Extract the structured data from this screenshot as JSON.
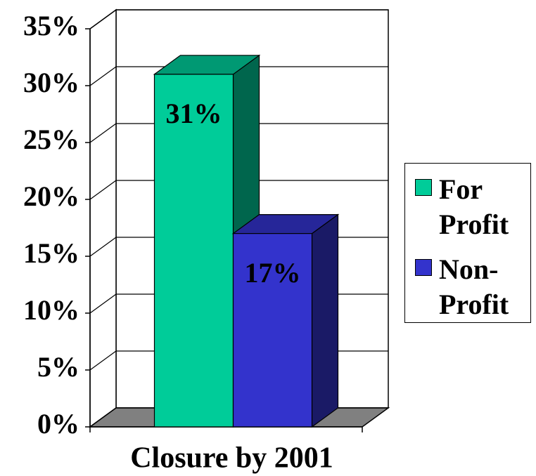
{
  "chart_data": {
    "type": "bar3d",
    "categories": [
      "Closure by 2001"
    ],
    "series": [
      {
        "name": "For Profit",
        "color": "#00cc99",
        "values": [
          31
        ],
        "value_labels": [
          "31%"
        ]
      },
      {
        "name": "Non-Profit",
        "color": "#3333cc",
        "values": [
          17
        ],
        "value_labels": [
          "17%"
        ]
      }
    ],
    "ylim": [
      0,
      35
    ],
    "yticks": [
      {
        "value": 0,
        "label": "0%"
      },
      {
        "value": 5,
        "label": "5%"
      },
      {
        "value": 10,
        "label": "10%"
      },
      {
        "value": 15,
        "label": "15%"
      },
      {
        "value": 20,
        "label": "20%"
      },
      {
        "value": 25,
        "label": "25%"
      },
      {
        "value": 30,
        "label": "30%"
      },
      {
        "value": 35,
        "label": "35%"
      }
    ],
    "grid": true,
    "legend": "right"
  }
}
